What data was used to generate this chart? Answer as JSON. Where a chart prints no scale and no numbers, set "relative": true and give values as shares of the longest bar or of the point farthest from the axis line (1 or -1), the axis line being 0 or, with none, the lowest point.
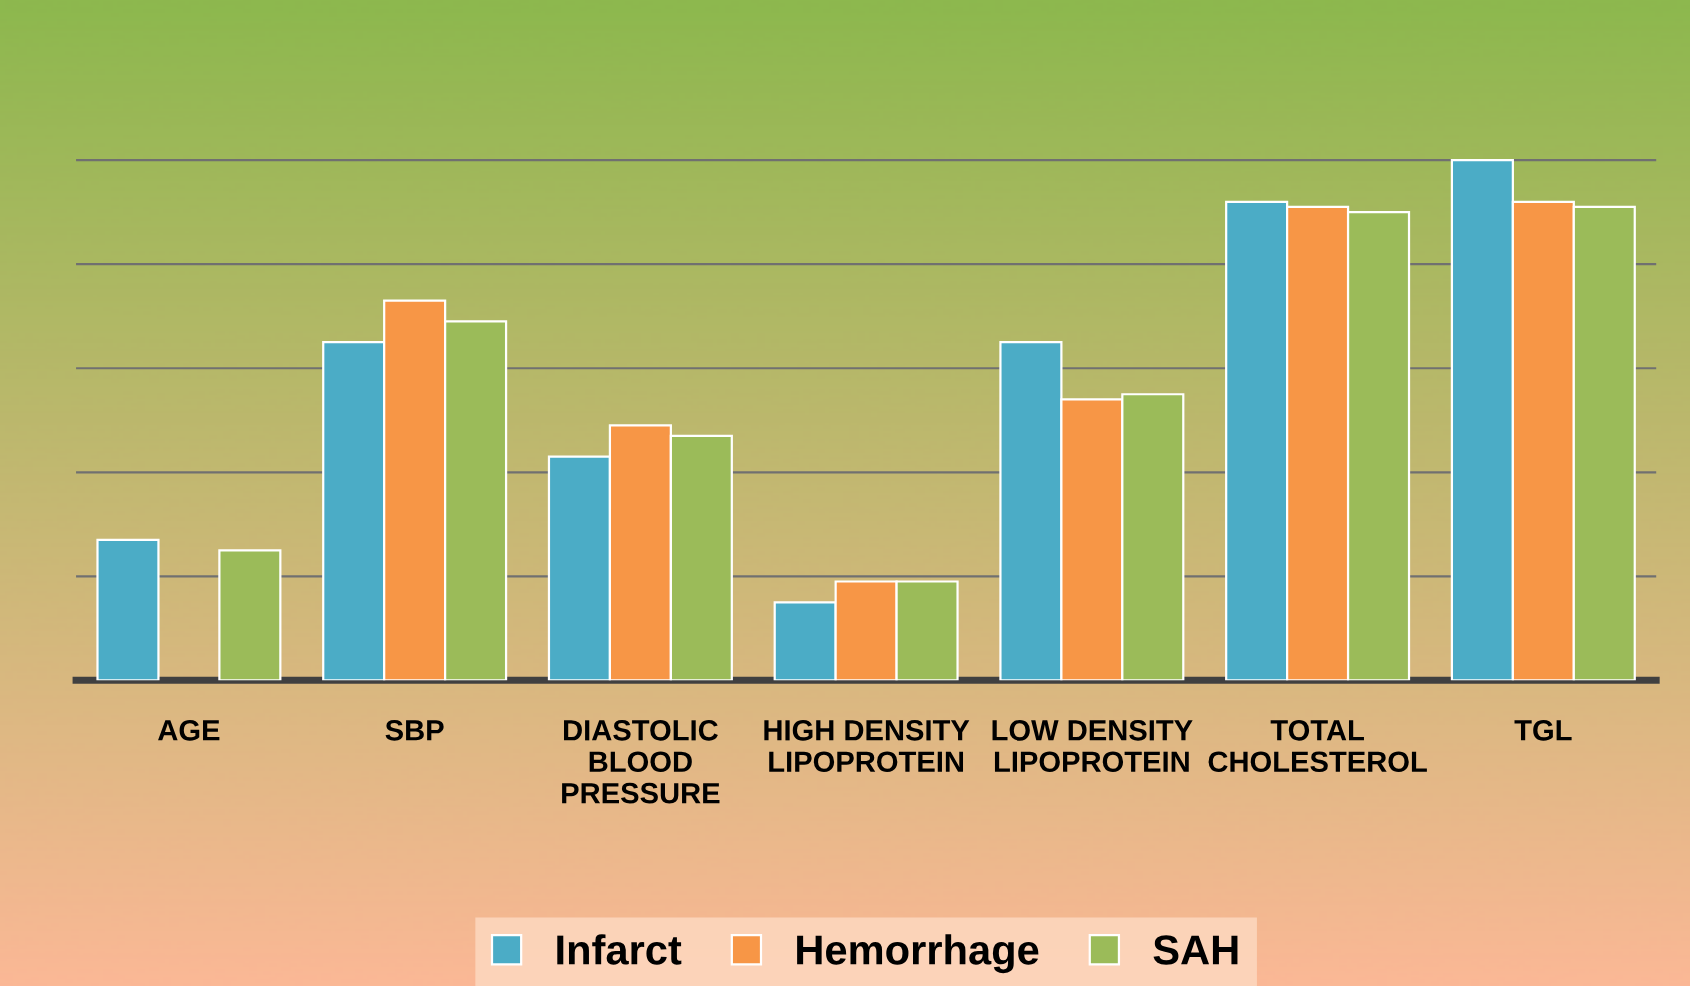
{
  "chart_data": {
    "type": "bar",
    "relative": true,
    "grid": "y",
    "legend": "bottom",
    "categories": [
      "AGE",
      "SBP",
      "DIASTOLIC\nBLOOD\nPRESSURE",
      "HIGH DENSITY\nLIPOPROTEIN",
      "LOW DENSITY\nLIPOPROTEIN",
      "TOTAL\nCHOLESTEROL",
      "TGL"
    ],
    "series": [
      {
        "name": "Infarct",
        "color": "#4bacc6",
        "values": [
          0.27,
          0.65,
          0.43,
          0.15,
          0.65,
          0.92,
          1
        ]
      },
      {
        "name": "Hemorrhage",
        "color": "#f79646",
        "values": [
          null,
          0.73,
          0.49,
          0.19,
          0.54,
          0.91,
          0.92
        ]
      },
      {
        "name": "SAH",
        "color": "#9bbb59",
        "values": [
          0.25,
          0.69,
          0.47,
          0.19,
          0.55,
          0.9,
          0.91
        ]
      }
    ]
  }
}
